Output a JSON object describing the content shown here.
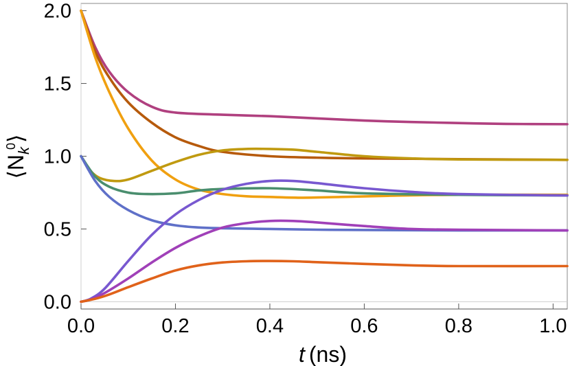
{
  "chart_data": {
    "type": "line",
    "xlabel_italic": "t",
    "xlabel_unit": "(ns)",
    "ylabel": "⟨N",
    "ylabel_sub": "k",
    "ylabel_sup": "0",
    "ylabel_close": "⟩",
    "xlim": [
      0,
      1.03
    ],
    "ylim": [
      -0.05,
      2.05
    ],
    "grid": false,
    "x_ticks": [
      {
        "value": 0.0,
        "label": "0.0"
      },
      {
        "value": 0.2,
        "label": "0.2"
      },
      {
        "value": 0.4,
        "label": "0.4"
      },
      {
        "value": 0.6,
        "label": "0.6"
      },
      {
        "value": 0.8,
        "label": "0.8"
      },
      {
        "value": 1.0,
        "label": "1.0"
      }
    ],
    "y_ticks": [
      {
        "value": 0.0,
        "label": "0.0"
      },
      {
        "value": 0.5,
        "label": "0.5"
      },
      {
        "value": 1.0,
        "label": "1.0"
      },
      {
        "value": 1.5,
        "label": "1.5"
      },
      {
        "value": 2.0,
        "label": "2.0"
      }
    ],
    "series": [
      {
        "color": "#b0407f",
        "x": [
          0,
          0.03,
          0.06,
          0.1,
          0.15,
          0.2,
          0.3,
          0.4,
          0.5,
          0.6,
          0.7,
          0.8,
          0.9,
          1.03
        ],
        "values": [
          2.0,
          1.75,
          1.58,
          1.44,
          1.34,
          1.3,
          1.285,
          1.275,
          1.26,
          1.245,
          1.235,
          1.228,
          1.222,
          1.22
        ]
      },
      {
        "color": "#b65a0c",
        "x": [
          0,
          0.03,
          0.06,
          0.1,
          0.15,
          0.2,
          0.25,
          0.3,
          0.4,
          0.5,
          0.6,
          0.8,
          1.03
        ],
        "values": [
          2.0,
          1.72,
          1.54,
          1.37,
          1.23,
          1.13,
          1.07,
          1.03,
          1.0,
          0.99,
          0.985,
          0.98,
          0.975
        ]
      },
      {
        "color": "#f0a010",
        "x": [
          0,
          0.03,
          0.06,
          0.1,
          0.15,
          0.2,
          0.25,
          0.3,
          0.35,
          0.4,
          0.47,
          0.55,
          0.65,
          0.8,
          1.03
        ],
        "values": [
          2.0,
          1.68,
          1.44,
          1.19,
          0.97,
          0.84,
          0.77,
          0.74,
          0.725,
          0.72,
          0.715,
          0.72,
          0.728,
          0.735,
          0.735
        ]
      },
      {
        "color": "#c09a10",
        "x": [
          0,
          0.02,
          0.04,
          0.07,
          0.1,
          0.15,
          0.2,
          0.25,
          0.3,
          0.35,
          0.4,
          0.45,
          0.5,
          0.6,
          0.7,
          0.8,
          1.03
        ],
        "values": [
          1.0,
          0.9,
          0.85,
          0.83,
          0.84,
          0.9,
          0.96,
          1.01,
          1.04,
          1.05,
          1.05,
          1.045,
          1.03,
          1.0,
          0.985,
          0.978,
          0.975
        ]
      },
      {
        "color": "#4a8e6e",
        "x": [
          0,
          0.03,
          0.06,
          0.1,
          0.14,
          0.2,
          0.25,
          0.3,
          0.4,
          0.5,
          0.6,
          0.8,
          1.03
        ],
        "values": [
          1.0,
          0.86,
          0.79,
          0.75,
          0.74,
          0.745,
          0.765,
          0.775,
          0.78,
          0.765,
          0.745,
          0.735,
          0.73
        ]
      },
      {
        "color": "#5f70c8",
        "x": [
          0,
          0.03,
          0.06,
          0.1,
          0.15,
          0.2,
          0.25,
          0.3,
          0.4,
          0.5,
          0.6,
          0.8,
          1.03
        ],
        "values": [
          1.0,
          0.83,
          0.72,
          0.63,
          0.56,
          0.525,
          0.51,
          0.505,
          0.5,
          0.495,
          0.493,
          0.49,
          0.49
        ]
      },
      {
        "color": "#7858d0",
        "x": [
          0,
          0.02,
          0.05,
          0.1,
          0.15,
          0.2,
          0.25,
          0.3,
          0.35,
          0.4,
          0.45,
          0.5,
          0.6,
          0.7,
          0.8,
          1.03
        ],
        "values": [
          0.0,
          0.02,
          0.09,
          0.28,
          0.46,
          0.6,
          0.7,
          0.77,
          0.81,
          0.83,
          0.83,
          0.815,
          0.78,
          0.755,
          0.74,
          0.73
        ]
      },
      {
        "color": "#a040b8",
        "x": [
          0,
          0.02,
          0.05,
          0.1,
          0.15,
          0.2,
          0.25,
          0.3,
          0.35,
          0.4,
          0.45,
          0.5,
          0.6,
          0.7,
          0.8,
          1.03
        ],
        "values": [
          0.0,
          0.015,
          0.06,
          0.16,
          0.27,
          0.37,
          0.45,
          0.51,
          0.54,
          0.555,
          0.555,
          0.545,
          0.52,
          0.5,
          0.495,
          0.49
        ]
      },
      {
        "color": "#e0621a",
        "x": [
          0,
          0.03,
          0.06,
          0.1,
          0.15,
          0.2,
          0.25,
          0.3,
          0.35,
          0.4,
          0.45,
          0.5,
          0.6,
          0.7,
          0.8,
          1.03
        ],
        "values": [
          0.0,
          0.02,
          0.05,
          0.1,
          0.16,
          0.215,
          0.25,
          0.27,
          0.278,
          0.28,
          0.278,
          0.272,
          0.26,
          0.25,
          0.245,
          0.245
        ]
      }
    ]
  }
}
